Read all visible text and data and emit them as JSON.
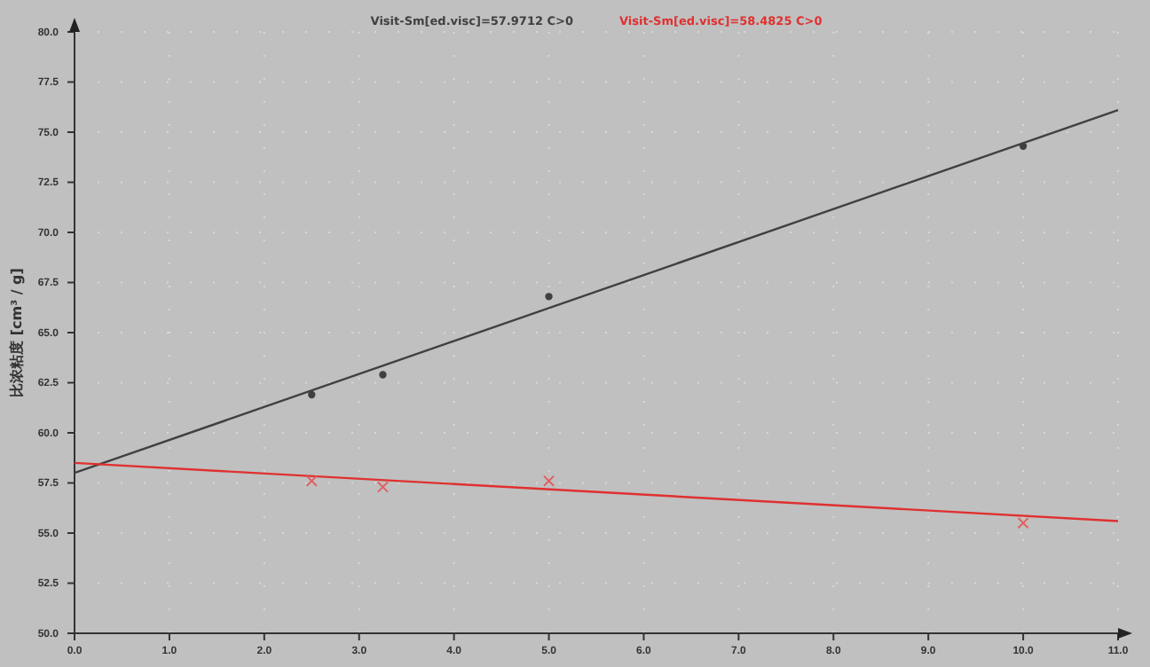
{
  "chart_data": {
    "type": "line",
    "ylabel": "比浓粘度 [cm³ / g]",
    "xlim": [
      0,
      11
    ],
    "ylim": [
      50,
      80
    ],
    "xticks": [
      {
        "value": 0,
        "label": "0.0"
      },
      {
        "value": 1,
        "label": "1.0"
      },
      {
        "value": 2,
        "label": "2.0"
      },
      {
        "value": 3,
        "label": "3.0"
      },
      {
        "value": 4,
        "label": "4.0"
      },
      {
        "value": 5,
        "label": "5.0"
      },
      {
        "value": 6,
        "label": "6.0"
      },
      {
        "value": 7,
        "label": "7.0"
      },
      {
        "value": 8,
        "label": "8.0"
      },
      {
        "value": 9,
        "label": "9.0"
      },
      {
        "value": 10,
        "label": "10.0"
      },
      {
        "value": 11,
        "label": "11.0"
      }
    ],
    "yticks": [
      {
        "value": 50,
        "label": "50.0"
      },
      52.5,
      {
        "value": 55,
        "label": "55.0"
      },
      57.5,
      {
        "value": 60,
        "label": "60.0"
      },
      62.5,
      {
        "value": 65,
        "label": "65.0"
      },
      67.5,
      {
        "value": 70,
        "label": "70.0"
      },
      72.5,
      {
        "value": 75,
        "label": "75.0"
      },
      77.5,
      {
        "value": 80,
        "label": "80.0"
      }
    ],
    "grid": true,
    "legend": "top",
    "series": [
      {
        "name": "Visit-Sm[ed.visc]=57.9712 C>0",
        "color": "#404040",
        "marker": "none",
        "x": [
          0,
          11
        ],
        "values": [
          58.0,
          76.1
        ]
      },
      {
        "name": "Visit-Sm[ed.visc]=58.4825 C>0",
        "color": "#e03030",
        "marker": "none",
        "x": [
          0,
          11
        ],
        "values": [
          58.5,
          55.6
        ]
      },
      {
        "color": "#404040",
        "type": "scatter",
        "marker": "circle",
        "x": [
          2.5,
          3.25,
          5,
          10
        ],
        "values": [
          61.9,
          62.9,
          66.8,
          74.3
        ]
      },
      {
        "color": "#e06060",
        "type": "scatter",
        "marker": "cross",
        "x": [
          2.5,
          3.25,
          5,
          10
        ],
        "values": [
          57.6,
          57.3,
          57.6,
          55.5
        ]
      }
    ]
  }
}
